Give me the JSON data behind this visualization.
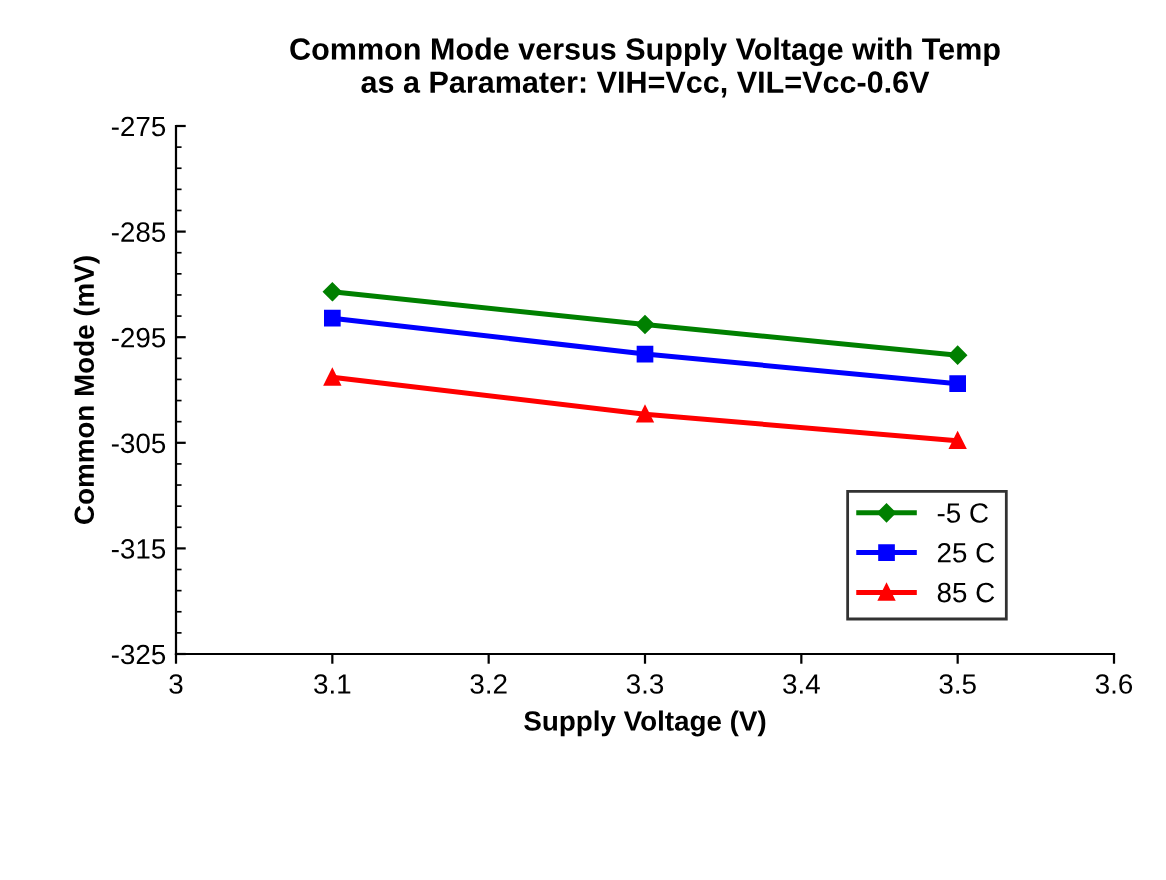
{
  "chart_data": {
    "type": "line",
    "title": "Common Mode versus Supply Voltage with Temp\nas a Paramater: VIH=Vcc, VIL=Vcc-0.6V",
    "xlabel": "Supply Voltage (V)",
    "ylabel": "Common Mode (mV)",
    "x": [
      3.1,
      3.3,
      3.5
    ],
    "series": [
      {
        "name": "-5 C",
        "color": "#008000",
        "marker": "diamond",
        "values": [
          -290.7,
          -293.8,
          -296.7
        ]
      },
      {
        "name": "25 C",
        "color": "#0000ff",
        "marker": "square",
        "values": [
          -293.2,
          -296.6,
          -299.4
        ]
      },
      {
        "name": "85 C",
        "color": "#ff0000",
        "marker": "triangle",
        "values": [
          -298.8,
          -302.3,
          -304.8
        ]
      }
    ],
    "xlim": [
      3,
      3.6
    ],
    "xticks": [
      3,
      3.1,
      3.2,
      3.3,
      3.4,
      3.5,
      3.6
    ],
    "ylim": [
      -325,
      -275
    ],
    "yticks": [
      -325,
      -315,
      -305,
      -295,
      -285,
      -275
    ],
    "grid": false,
    "legend": "bottom right"
  }
}
